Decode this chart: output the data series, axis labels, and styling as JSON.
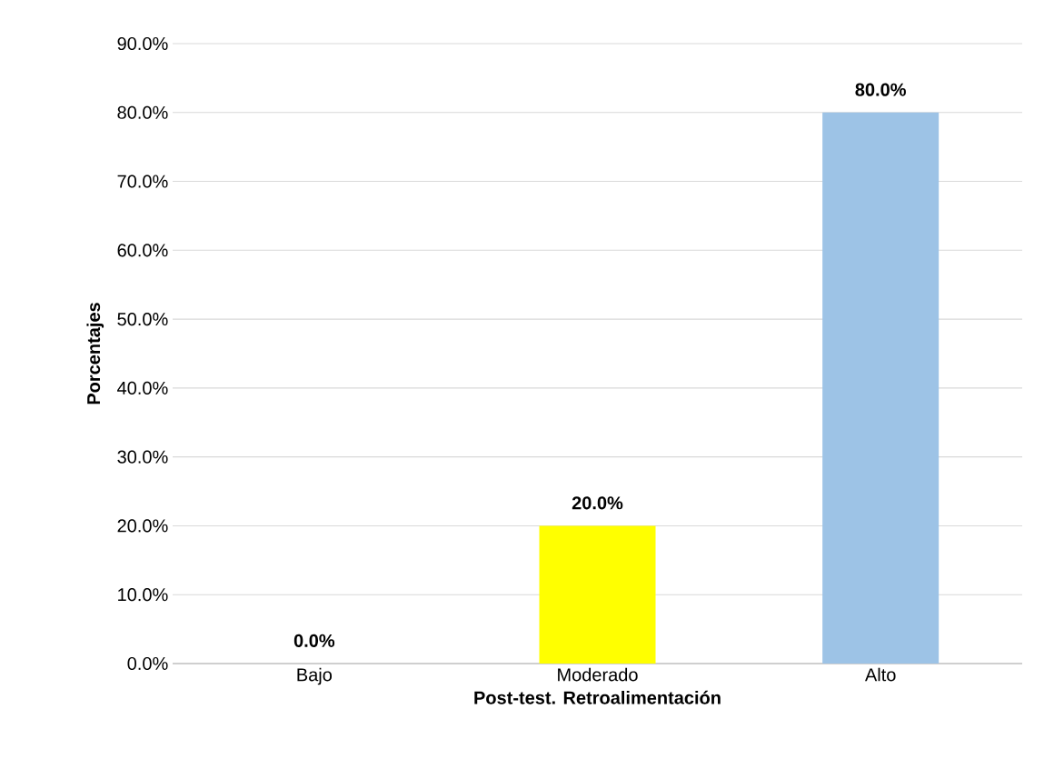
{
  "chart_data": {
    "type": "bar",
    "xlabel": "Post-test. Retroalimentación",
    "ylabel": "Porcentajes",
    "categories": [
      "Bajo",
      "Moderado",
      "Alto"
    ],
    "values": [
      0.0,
      20.0,
      80.0
    ],
    "colors": [
      "#9dc3e6",
      "#ffff00",
      "#9dc3e6"
    ],
    "value_labels": [
      "0.0%",
      "20.0%",
      "80.0%"
    ],
    "ylim": [
      0,
      90
    ],
    "yticks": [
      {
        "value": 0,
        "label": "0.0%"
      },
      {
        "value": 10,
        "label": "10.0%"
      },
      {
        "value": 20,
        "label": "20.0%"
      },
      {
        "value": 30,
        "label": "30.0%"
      },
      {
        "value": 40,
        "label": "40.0%"
      },
      {
        "value": 50,
        "label": "50.0%"
      },
      {
        "value": 60,
        "label": "60.0%"
      },
      {
        "value": 70,
        "label": "70.0%"
      },
      {
        "value": 80,
        "label": "80.0%"
      },
      {
        "value": 90,
        "label": "90.0%"
      }
    ],
    "grid": "y"
  }
}
